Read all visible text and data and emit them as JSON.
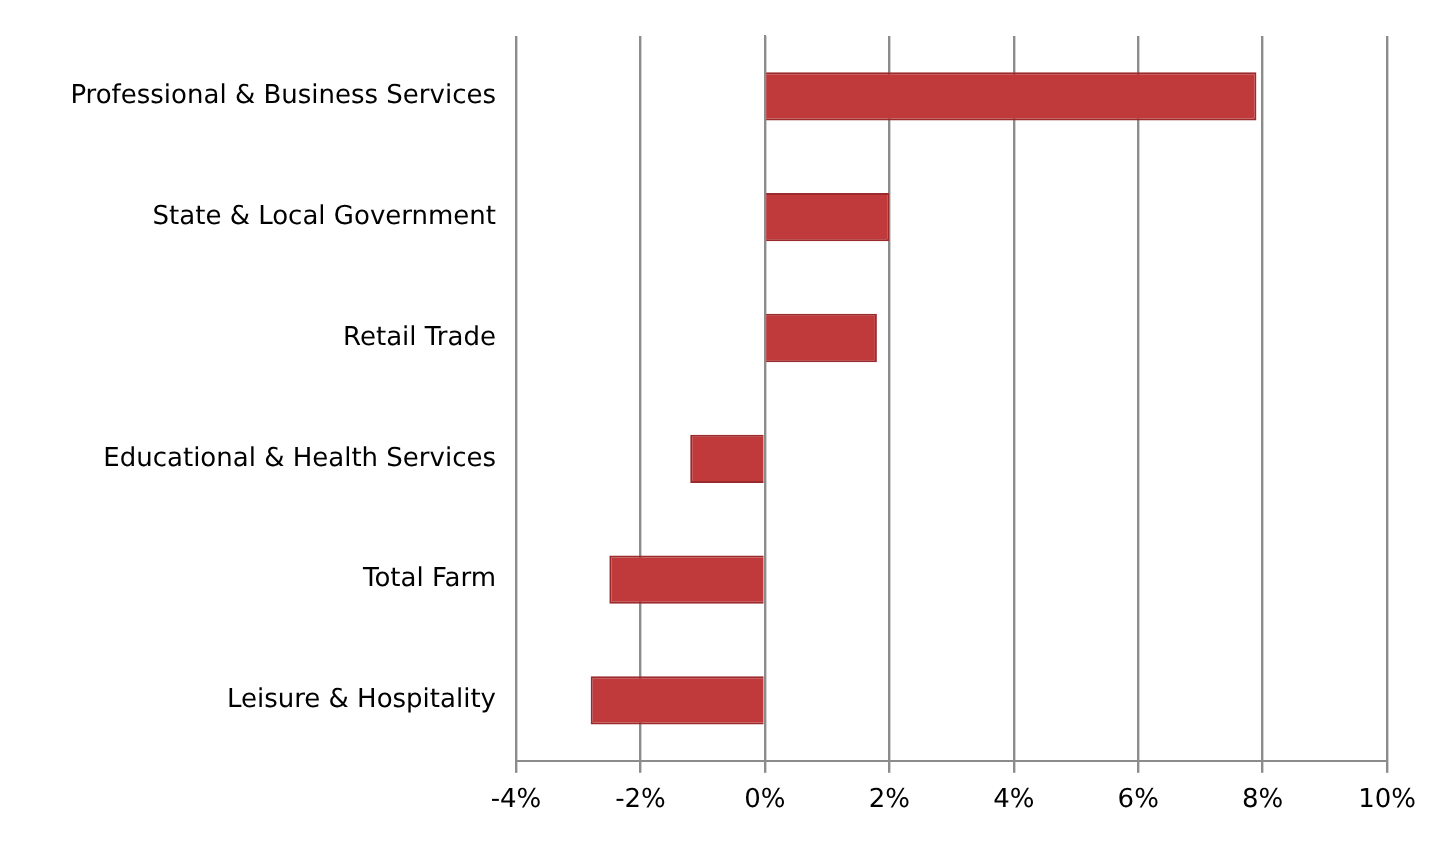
{
  "chart_data": {
    "type": "bar",
    "orientation": "horizontal",
    "categories": [
      "Professional & Business Services",
      "State & Local Government",
      "Retail Trade",
      "Educational & Health Services",
      "Total Farm",
      "Leisure & Hospitality"
    ],
    "values": [
      7.9,
      2.0,
      1.8,
      -1.2,
      -2.5,
      -2.8
    ],
    "color": "#c0393b",
    "xlim": [
      -4,
      10
    ],
    "xticks": [
      {
        "value": -4,
        "label": "-4%"
      },
      {
        "value": -2,
        "label": "-2%"
      },
      {
        "value": 0,
        "label": "0%"
      },
      {
        "value": 2,
        "label": "2%"
      },
      {
        "value": 4,
        "label": "4%"
      },
      {
        "value": 6,
        "label": "6%"
      },
      {
        "value": 8,
        "label": "8%"
      },
      {
        "value": 10,
        "label": "10%"
      }
    ],
    "grid": "x",
    "legend": false
  }
}
